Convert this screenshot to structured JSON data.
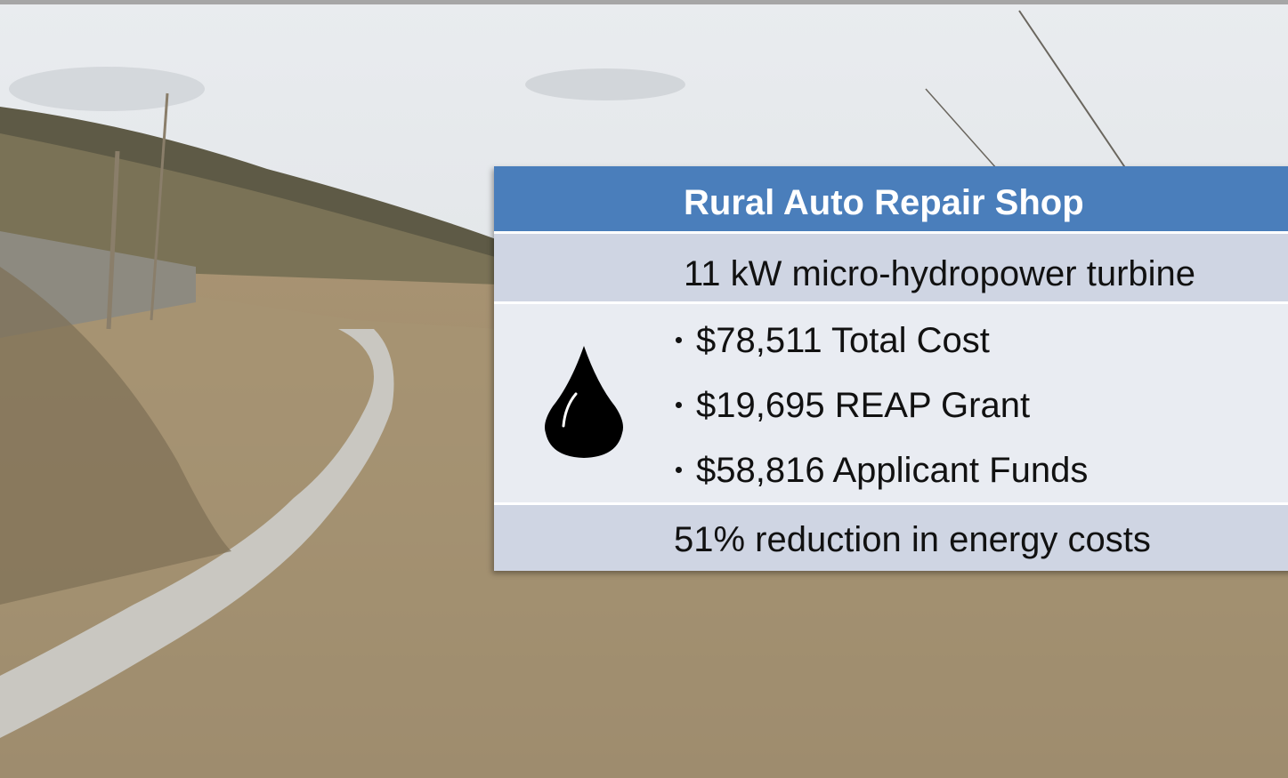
{
  "slide": {
    "title": "Rural Auto Repair Shop",
    "subtitle": "11 kW micro-hydropower turbine",
    "bullets": [
      "$78,511 Total Cost",
      "$19,695 REAP Grant",
      "$58,816 Applicant Funds"
    ],
    "footer": "51% reduction in energy costs"
  }
}
